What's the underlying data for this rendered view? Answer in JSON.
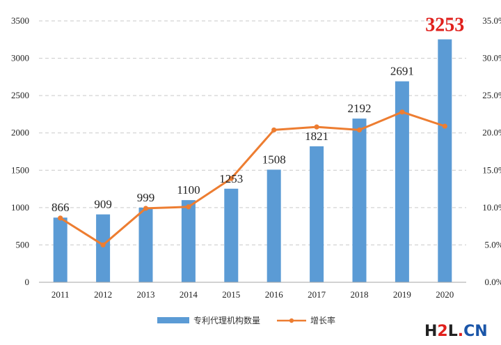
{
  "chart_data": {
    "type": "bar",
    "categories": [
      "2011",
      "2012",
      "2013",
      "2014",
      "2015",
      "2016",
      "2017",
      "2018",
      "2019",
      "2020"
    ],
    "series": [
      {
        "name": "专利代理机构数量",
        "kind": "bar",
        "axis": "left",
        "values": [
          866,
          909,
          999,
          1100,
          1253,
          1508,
          1821,
          2192,
          2691,
          3253
        ],
        "labels": [
          "866",
          "909",
          "999",
          "1100",
          "1253",
          "1508",
          "1821",
          "2192",
          "2691",
          "3253"
        ],
        "color": "#5b9bd5"
      },
      {
        "name": "增长率",
        "kind": "line",
        "axis": "right",
        "values": [
          8.6,
          5.0,
          9.9,
          10.1,
          13.9,
          20.4,
          20.8,
          20.4,
          22.8,
          20.9
        ],
        "color": "#ed7d31"
      }
    ],
    "highlight": {
      "category": "2020",
      "color": "#e0201c"
    },
    "ylim_left": [
      0,
      3500
    ],
    "left_ticks": [
      "0",
      "500",
      "1000",
      "1500",
      "2000",
      "2500",
      "3000",
      "3500"
    ],
    "ylim_right": [
      0,
      35
    ],
    "right_ticks": [
      "0.0%",
      "5.0%",
      "10.0%",
      "15.0%",
      "20.0%",
      "25.0%",
      "30.0%",
      "35.0%"
    ],
    "grid": true,
    "grid_style": "dashed",
    "legend": "bottom-center"
  },
  "watermark": {
    "text": "H2L.CN"
  }
}
